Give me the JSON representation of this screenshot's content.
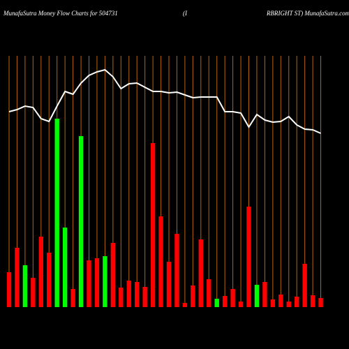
{
  "chart_data": {
    "type": "bar",
    "title": "MunafaSutra  Money Flow  Charts for 504731",
    "title_middle": "(I",
    "title_right": "RBRIGHT ST) MunafaSutra.com",
    "categories": [
      null,
      null,
      null,
      null,
      null,
      null,
      null,
      null,
      null,
      null,
      null,
      null,
      null,
      null,
      null,
      null,
      null,
      null,
      null,
      null,
      null,
      null,
      null,
      null,
      null,
      null,
      null,
      null,
      null,
      null,
      null,
      null,
      null,
      null,
      null,
      null,
      null,
      null,
      null,
      null
    ],
    "values": [
      50,
      85,
      60,
      42,
      101,
      78,
      270,
      114,
      26,
      245,
      67,
      70,
      73,
      92,
      28,
      38,
      36,
      29,
      235,
      130,
      65,
      105,
      6,
      31,
      97,
      40,
      12,
      16,
      26,
      8,
      144,
      32,
      36,
      11,
      18,
      8,
      15,
      62,
      17,
      13
    ],
    "colors": [
      "#ff0000",
      "#ff0000",
      "#00ff00",
      "#ff0000",
      "#ff0000",
      "#ff0000",
      "#00ff00",
      "#00ff00",
      "#ff0000",
      "#00ff00",
      "#ff0000",
      "#ff0000",
      "#00ff00",
      "#ff0000",
      "#ff0000",
      "#ff0000",
      "#ff0000",
      "#ff0000",
      "#ff0000",
      "#ff0000",
      "#ff0000",
      "#ff0000",
      "#ff0000",
      "#ff0000",
      "#ff0000",
      "#ff0000",
      "#00ff00",
      "#ff0000",
      "#ff0000",
      "#ff0000",
      "#ff0000",
      "#00ff00",
      "#ff0000",
      "#ff0000",
      "#ff0000",
      "#ff0000",
      "#ff0000",
      "#ff0000",
      "#ff0000",
      "#ff0000"
    ],
    "line": {
      "color": "#ffffff",
      "values": [
        280,
        283,
        288,
        286,
        270,
        266,
        288,
        309,
        305,
        321,
        332,
        337,
        340,
        330,
        313,
        320,
        321,
        315,
        309,
        309,
        307,
        308,
        304,
        300,
        301,
        301,
        301,
        280,
        280,
        278,
        258,
        276,
        268,
        265,
        266,
        273,
        261,
        255,
        254,
        249
      ]
    },
    "ylim": [
      0,
      360
    ],
    "grid_color": "#b8660b"
  }
}
